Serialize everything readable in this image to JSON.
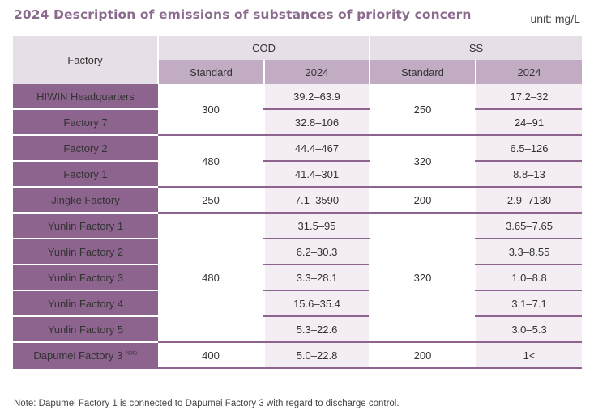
{
  "title": "2024 Description of emissions of substances of priority concern",
  "unit": "unit: mg/L",
  "headers": {
    "factory": "Factory",
    "cod": "COD",
    "ss": "SS",
    "standard": "Standard",
    "year": "2024"
  },
  "rows": [
    {
      "factory": "HIWIN Headquarters",
      "cod": "39.2–63.9",
      "ss": "17.2–32"
    },
    {
      "factory": "Factory 7",
      "cod": "32.8–106",
      "ss": "24–91"
    },
    {
      "factory": "Factory 2",
      "cod": "44.4–467",
      "ss": "6.5–126"
    },
    {
      "factory": "Factory 1",
      "cod": "41.4–301",
      "ss": "8.8–13"
    },
    {
      "factory": "Jingke Factory",
      "cod": "7.1–3590",
      "ss": "2.9–7130"
    },
    {
      "factory": "Yunlin Factory 1",
      "cod": "31.5–95",
      "ss": "3.65–7.65"
    },
    {
      "factory": "Yunlin Factory 2",
      "cod": "6.2–30.3",
      "ss": "3.3–8.55"
    },
    {
      "factory": "Yunlin Factory 3",
      "cod": "3.3–28.1",
      "ss": "1.0–8.8"
    },
    {
      "factory": "Yunlin Factory 4",
      "cod": "15.6–35.4",
      "ss": "3.1–7.1"
    },
    {
      "factory": "Yunlin Factory 5",
      "cod": "5.3–22.6",
      "ss": "3.0–5.3"
    },
    {
      "factory": "Dapumei Factory 3",
      "factory_sup": "Note",
      "cod": "5.0–22.8",
      "ss": "1<"
    }
  ],
  "standards": {
    "cod": [
      "300",
      "480",
      "250",
      "480",
      "400"
    ],
    "ss": [
      "250",
      "320",
      "200",
      "320",
      "200"
    ]
  },
  "note": "Note: Dapumei Factory 1 is connected to Dapumei Factory 3 with regard to discharge control."
}
